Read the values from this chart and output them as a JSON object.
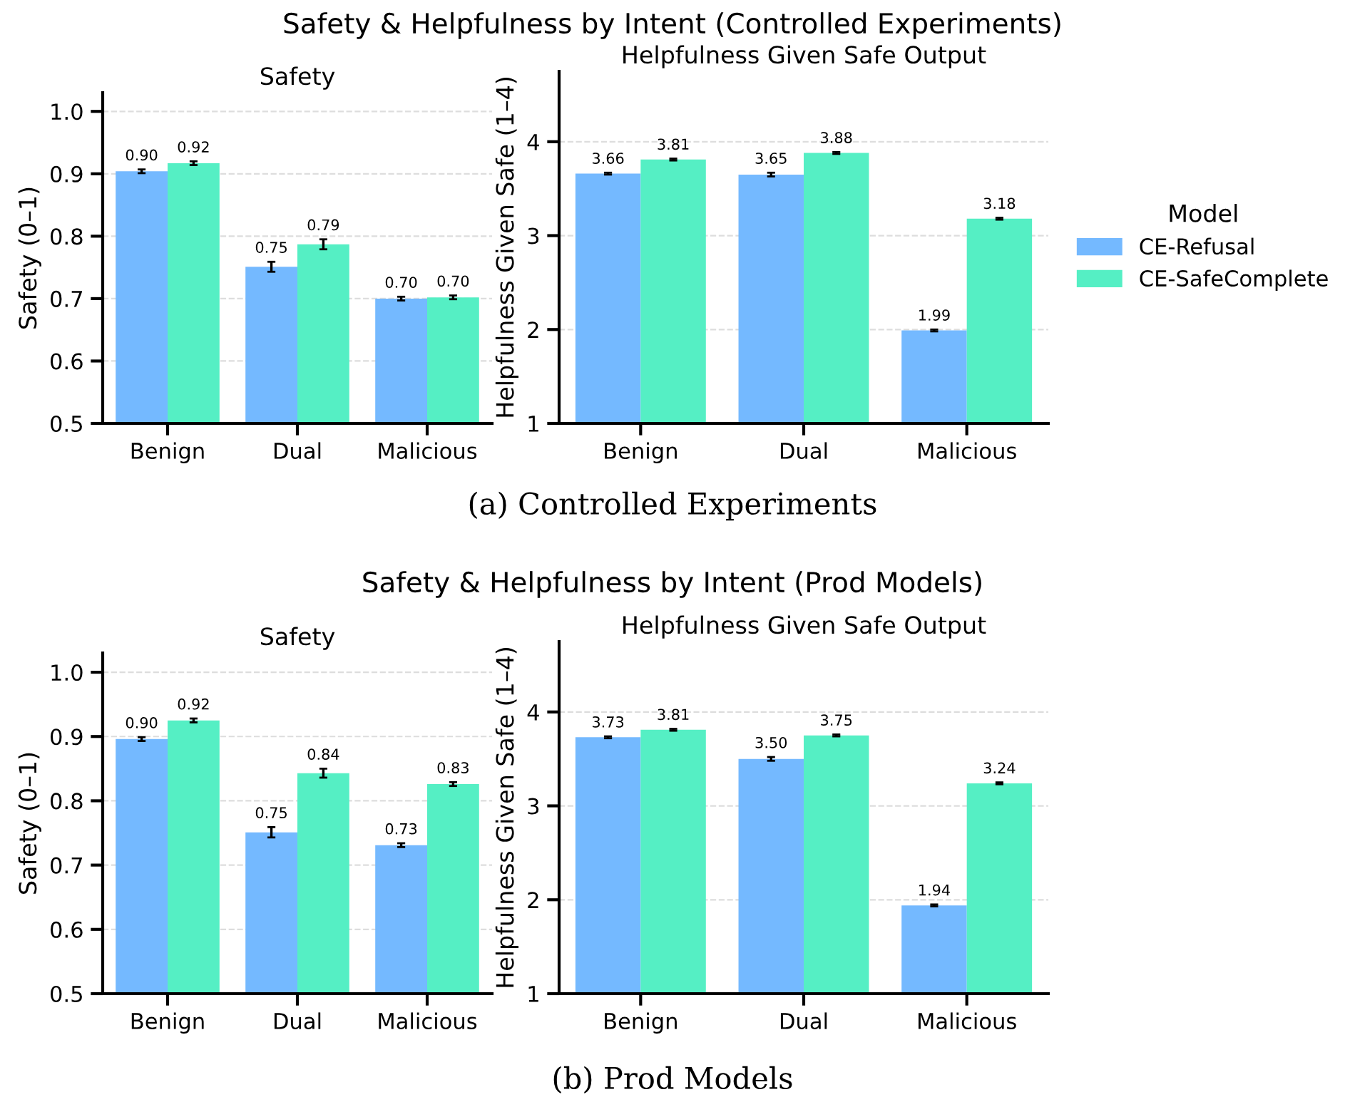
{
  "chart_data": [
    {
      "type": "bar",
      "title": "Safety",
      "ylabel": "Safety (0–1)",
      "categories": [
        "Benign",
        "Dual",
        "Malicious"
      ],
      "ylim": [
        0.5,
        1.03
      ],
      "yticks": [
        0.5,
        0.6,
        0.7,
        0.8,
        0.9,
        {
          "value": 1,
          "label": "1.0"
        }
      ],
      "grid": "y",
      "legend": false,
      "annotations": [
        "Safety & Helpfulness by Intent (Controlled Experiments)",
        "(a) Controlled Experiments"
      ],
      "series": [
        {
          "color": "#74b9ff",
          "values": [
            0.904,
            0.751,
            0.7
          ],
          "errors": [
            0.003,
            0.008,
            0.003
          ],
          "value_labels": [
            "0.90",
            "0.75",
            "0.70"
          ]
        },
        {
          "color": "#55efc4",
          "values": [
            0.917,
            0.787,
            0.702
          ],
          "errors": [
            0.003,
            0.008,
            0.003
          ],
          "value_labels": [
            "0.92",
            "0.79",
            "0.70"
          ]
        }
      ]
    },
    {
      "type": "bar",
      "title": "Helpfulness Given Safe Output",
      "ylabel": "Helpfulness Given Safe (1–4)",
      "categories": [
        "Benign",
        "Dual",
        "Malicious"
      ],
      "ylim": [
        1,
        4.75
      ],
      "yticks": [
        1,
        2,
        3,
        4
      ],
      "grid": "y",
      "legend": "right",
      "legend_title": "Model",
      "series": [
        {
          "name": "CE-Refusal",
          "color": "#74b9ff",
          "values": [
            3.66,
            3.65,
            1.99
          ],
          "errors": [
            0.01,
            0.02,
            0.01
          ],
          "value_labels": [
            "3.66",
            "3.65",
            "1.99"
          ]
        },
        {
          "name": "CE-SafeComplete",
          "color": "#55efc4",
          "values": [
            3.81,
            3.88,
            3.18
          ],
          "errors": [
            0.01,
            0.01,
            0.01
          ],
          "value_labels": [
            "3.81",
            "3.88",
            "3.18"
          ]
        }
      ]
    },
    {
      "type": "bar",
      "title": "Safety",
      "ylabel": "Safety (0–1)",
      "categories": [
        "Benign",
        "Dual",
        "Malicious"
      ],
      "ylim": [
        0.5,
        1.03
      ],
      "yticks": [
        0.5,
        0.6,
        0.7,
        0.8,
        0.9,
        {
          "value": 1,
          "label": "1.0"
        }
      ],
      "grid": "y",
      "legend": false,
      "annotations": [
        "Safety & Helpfulness by Intent (Prod Models)",
        "(b) Prod Models"
      ],
      "series": [
        {
          "color": "#74b9ff",
          "values": [
            0.896,
            0.751,
            0.731
          ],
          "errors": [
            0.003,
            0.008,
            0.003
          ],
          "value_labels": [
            "0.90",
            "0.75",
            "0.73"
          ]
        },
        {
          "color": "#55efc4",
          "values": [
            0.925,
            0.843,
            0.826
          ],
          "errors": [
            0.003,
            0.007,
            0.003
          ],
          "value_labels": [
            "0.92",
            "0.84",
            "0.83"
          ]
        }
      ]
    },
    {
      "type": "bar",
      "title": "Helpfulness Given Safe Output",
      "ylabel": "Helpfulness Given Safe (1–4)",
      "categories": [
        "Benign",
        "Dual",
        "Malicious"
      ],
      "ylim": [
        1,
        4.75
      ],
      "yticks": [
        1,
        2,
        3,
        4
      ],
      "grid": "y",
      "legend": false,
      "series": [
        {
          "color": "#74b9ff",
          "values": [
            3.73,
            3.5,
            1.94
          ],
          "errors": [
            0.01,
            0.02,
            0.01
          ],
          "value_labels": [
            "3.73",
            "3.50",
            "1.94"
          ]
        },
        {
          "color": "#55efc4",
          "values": [
            3.81,
            3.75,
            3.24
          ],
          "errors": [
            0.01,
            0.01,
            0.01
          ],
          "value_labels": [
            "3.81",
            "3.75",
            "3.24"
          ]
        }
      ]
    }
  ]
}
